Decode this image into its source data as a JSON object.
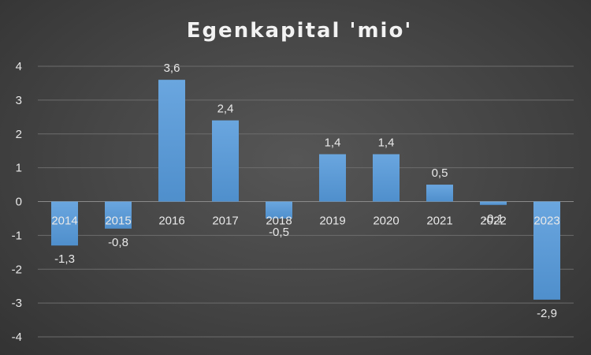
{
  "chart_data": {
    "type": "bar",
    "title": "Egenkapital 'mio'",
    "categories": [
      "2014",
      "2015",
      "2016",
      "2017",
      "2018",
      "2019",
      "2020",
      "2021",
      "2022",
      "2023"
    ],
    "values": [
      -1.3,
      -0.8,
      3.6,
      2.4,
      -0.5,
      1.4,
      1.4,
      0.5,
      -0.1,
      -2.9
    ],
    "data_labels": [
      "-1,3",
      "-0,8",
      "3,6",
      "2,4",
      "-0,5",
      "1,4",
      "1,4",
      "0,5",
      "-0,1",
      "-2,9"
    ],
    "ylim": [
      -4,
      4
    ],
    "yticks": [
      -4,
      -3,
      -2,
      -1,
      0,
      1,
      2,
      3,
      4
    ],
    "grid": true,
    "bar_color": "#5b9bd5",
    "bar_color_light": "#6aa6df"
  }
}
